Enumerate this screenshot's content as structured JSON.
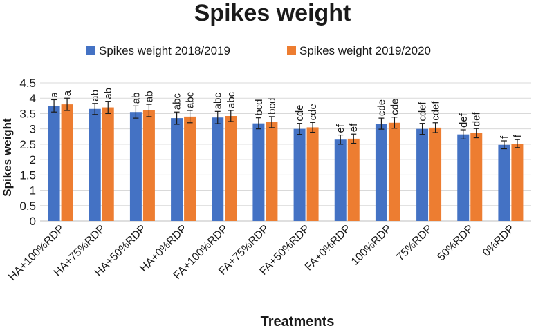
{
  "chart_data": {
    "type": "bar",
    "title": "Spikes weight",
    "xlabel": "Treatments",
    "ylabel": "Spikes weight",
    "ylim": [
      0,
      4.5
    ],
    "yticks": [
      "0",
      "0.5",
      "1",
      "1.5",
      "2",
      "2.5",
      "3",
      "3.5",
      "4",
      "4.5"
    ],
    "legend_position": "top",
    "categories": [
      "HA+100%RDP",
      "HA+75%RDP",
      "HA+50%RDP",
      "HA+0%RDP",
      "FA+100%RDP",
      "FA+75%RDP",
      "FA+50%RDP",
      "FA+0%RDP",
      "100%RDP",
      "75%RDP",
      "50%RDP",
      "0%RDP"
    ],
    "series": [
      {
        "name": "Spikes weight 2018/2019",
        "color": "#4472C4",
        "values": [
          3.75,
          3.65,
          3.55,
          3.35,
          3.37,
          3.18,
          3.0,
          2.65,
          3.17,
          3.0,
          2.82,
          2.48
        ],
        "errors": [
          0.2,
          0.18,
          0.2,
          0.2,
          0.2,
          0.18,
          0.18,
          0.15,
          0.18,
          0.18,
          0.15,
          0.13
        ],
        "labels": [
          "a",
          "ab",
          "ab",
          "abc",
          "abc",
          "bcd",
          "cde",
          "ef",
          "cde",
          "cdef",
          "def",
          "f"
        ]
      },
      {
        "name": "Spikes weight 2019/2020",
        "color": "#ED7D31",
        "values": [
          3.8,
          3.7,
          3.6,
          3.4,
          3.42,
          3.22,
          3.05,
          2.68,
          3.2,
          3.04,
          2.86,
          2.52
        ],
        "errors": [
          0.2,
          0.2,
          0.2,
          0.2,
          0.18,
          0.18,
          0.16,
          0.15,
          0.18,
          0.16,
          0.15,
          0.13
        ],
        "labels": [
          "a",
          "ab",
          "ab",
          "abc",
          "abc",
          "bcd",
          "cde",
          "ef",
          "cde",
          "cdef",
          "def",
          "f"
        ]
      }
    ]
  }
}
